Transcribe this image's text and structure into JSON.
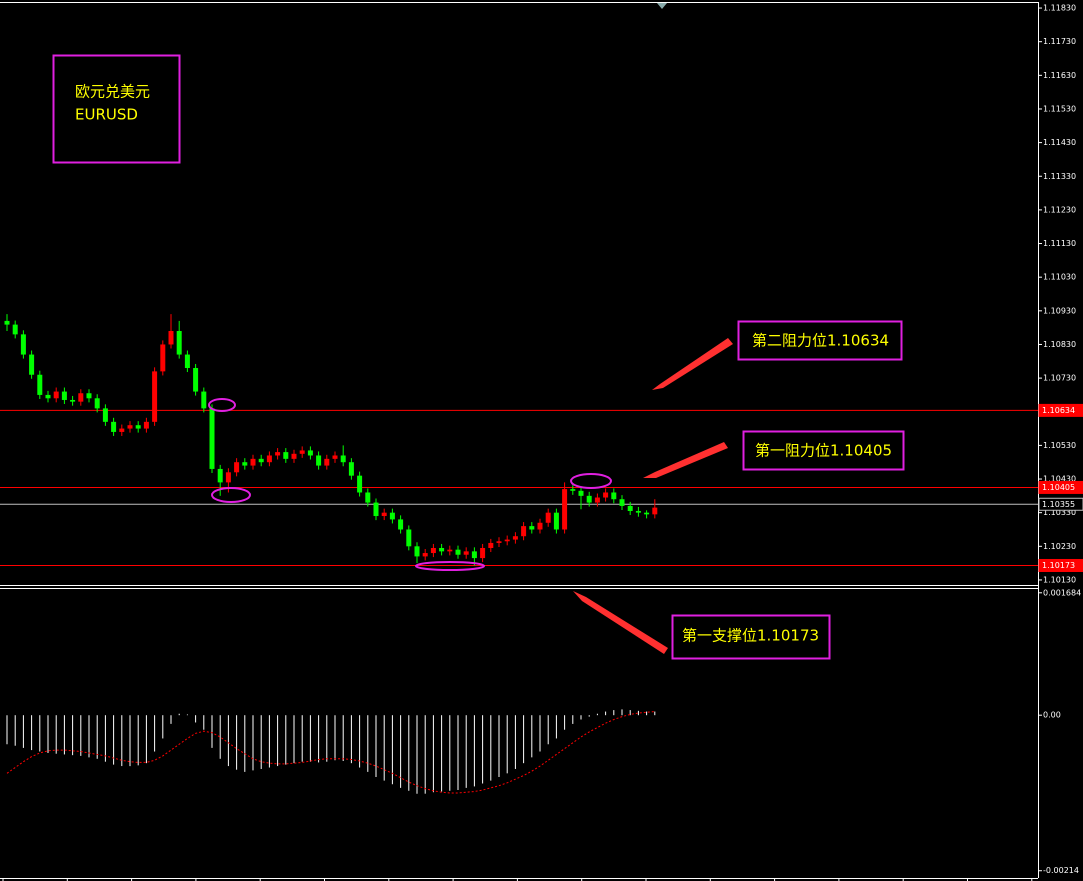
{
  "chart_data": [
    {
      "type": "candlestick",
      "annotations": [
        "欧元兑美元",
        "EURUSD",
        "第二阻力位1.10634",
        "第一阻力位1.10405",
        "第一支撑位1.10173"
      ],
      "up_color": "#ff0000",
      "down_color": "#00ff00",
      "ylim": [
        1.10115,
        1.11845
      ],
      "yticks": [
        {
          "value": 1.1183,
          "label": "1.11830"
        },
        {
          "value": 1.1173,
          "label": "1.11730"
        },
        {
          "value": 1.1163,
          "label": "1.11630"
        },
        {
          "value": 1.1153,
          "label": "1.11530"
        },
        {
          "value": 1.1143,
          "label": "1.11430"
        },
        {
          "value": 1.1133,
          "label": "1.11330"
        },
        {
          "value": 1.1123,
          "label": "1.11230"
        },
        {
          "value": 1.1113,
          "label": "1.11130"
        },
        {
          "value": 1.1103,
          "label": "1.11030"
        },
        {
          "value": 1.1093,
          "label": "1.10930"
        },
        {
          "value": 1.1083,
          "label": "1.10830"
        },
        {
          "value": 1.1073,
          "label": "1.10730"
        },
        {
          "value": 1.1053,
          "label": "1.10530"
        },
        {
          "value": 1.1043,
          "label": "1.10430"
        },
        {
          "value": 1.1033,
          "label": "1.10330"
        },
        {
          "value": 1.1023,
          "label": "1.10230"
        },
        {
          "value": 1.1013,
          "label": "1.10130"
        }
      ],
      "levels": [
        {
          "value": 1.10634,
          "color": "#ff0000"
        },
        {
          "value": 1.10405,
          "color": "#ff0000"
        },
        {
          "value": 1.10355,
          "color": "#c0c0c0"
        },
        {
          "value": 1.10173,
          "color": "#ff0000"
        }
      ],
      "open": [
        1.109,
        1.10889,
        1.1086,
        1.108,
        1.1074,
        1.1068,
        1.1067,
        1.1069,
        1.10665,
        1.1066,
        1.10685,
        1.1067,
        1.1064,
        1.106,
        1.1057,
        1.1058,
        1.1059,
        1.1058,
        1.106,
        1.1075,
        1.1083,
        1.1087,
        1.108,
        1.1076,
        1.1069,
        1.1064,
        1.1046,
        1.1042,
        1.1045,
        1.1048,
        1.1047,
        1.1049,
        1.1048,
        1.105,
        1.1051,
        1.1049,
        1.10505,
        1.10515,
        1.105,
        1.1047,
        1.1049,
        1.105,
        1.1048,
        1.1044,
        1.1039,
        1.1036,
        1.1032,
        1.1033,
        1.1031,
        1.1028,
        1.1023,
        1.102,
        1.1021,
        1.10225,
        1.10215,
        1.1022,
        1.10205,
        1.10215,
        1.10195,
        1.10225,
        1.1024,
        1.10245,
        1.1025,
        1.1026,
        1.1029,
        1.1028,
        1.103,
        1.1033,
        1.1028,
        1.104,
        1.10395,
        1.1038,
        1.1036,
        1.10375,
        1.1039,
        1.1037,
        1.1035,
        1.10335,
        1.1033,
        1.10325
      ],
      "high": [
        1.1092,
        1.10901,
        1.10872,
        1.10812,
        1.10752,
        1.10692,
        1.10702,
        1.10702,
        1.10677,
        1.10697,
        1.10697,
        1.10682,
        1.10652,
        1.10612,
        1.10592,
        1.10602,
        1.10602,
        1.10612,
        1.10762,
        1.10842,
        1.1092,
        1.109,
        1.10812,
        1.10772,
        1.10702,
        1.10652,
        1.10472,
        1.10462,
        1.10492,
        1.10492,
        1.10502,
        1.10502,
        1.10512,
        1.10522,
        1.10522,
        1.10517,
        1.10527,
        1.10527,
        1.10512,
        1.10502,
        1.10512,
        1.1053,
        1.10492,
        1.10452,
        1.10402,
        1.10372,
        1.10342,
        1.10342,
        1.10322,
        1.10292,
        1.10242,
        1.10222,
        1.10237,
        1.10237,
        1.10232,
        1.10232,
        1.10227,
        1.10227,
        1.10237,
        1.10252,
        1.10257,
        1.10262,
        1.10272,
        1.10302,
        1.10302,
        1.10312,
        1.10342,
        1.10342,
        1.1042,
        1.10412,
        1.10407,
        1.10392,
        1.10387,
        1.10402,
        1.10402,
        1.10382,
        1.10362,
        1.10347,
        1.10337,
        1.1037
      ],
      "low": [
        1.1087,
        1.10848,
        1.10788,
        1.10728,
        1.10668,
        1.10658,
        1.10658,
        1.10653,
        1.10648,
        1.10648,
        1.10658,
        1.10628,
        1.10588,
        1.10558,
        1.10558,
        1.10568,
        1.10568,
        1.10568,
        1.10588,
        1.10738,
        1.10818,
        1.10788,
        1.10748,
        1.10678,
        1.10628,
        1.10448,
        1.1038,
        1.1039,
        1.10438,
        1.10458,
        1.10458,
        1.10468,
        1.10468,
        1.10488,
        1.10478,
        1.10478,
        1.10493,
        1.10488,
        1.10458,
        1.10458,
        1.10478,
        1.10468,
        1.10428,
        1.10378,
        1.10348,
        1.10308,
        1.10308,
        1.10298,
        1.10268,
        1.10218,
        1.1018,
        1.10188,
        1.10198,
        1.10203,
        1.10203,
        1.10193,
        1.10193,
        1.10173,
        1.10183,
        1.10213,
        1.10228,
        1.10233,
        1.10238,
        1.10248,
        1.10268,
        1.10268,
        1.10288,
        1.10268,
        1.10268,
        1.10383,
        1.1034,
        1.10348,
        1.10348,
        1.10363,
        1.10358,
        1.10338,
        1.10323,
        1.10318,
        1.10313,
        1.10313
      ],
      "close": [
        1.10889,
        1.1086,
        1.108,
        1.1074,
        1.1068,
        1.1067,
        1.1069,
        1.10665,
        1.1066,
        1.10685,
        1.1067,
        1.1064,
        1.106,
        1.1057,
        1.1058,
        1.1059,
        1.1058,
        1.106,
        1.1075,
        1.1083,
        1.1087,
        1.108,
        1.1076,
        1.1069,
        1.1064,
        1.1046,
        1.1042,
        1.1045,
        1.1048,
        1.1047,
        1.1049,
        1.1048,
        1.105,
        1.1051,
        1.1049,
        1.10505,
        1.10515,
        1.105,
        1.1047,
        1.1049,
        1.105,
        1.1048,
        1.1044,
        1.1039,
        1.1036,
        1.1032,
        1.1033,
        1.1031,
        1.1028,
        1.1023,
        1.102,
        1.1021,
        1.10225,
        1.10215,
        1.1022,
        1.10205,
        1.10215,
        1.10195,
        1.10225,
        1.1024,
        1.10245,
        1.1025,
        1.1026,
        1.1029,
        1.1028,
        1.103,
        1.1033,
        1.1028,
        1.104,
        1.10395,
        1.1038,
        1.1036,
        1.10375,
        1.1039,
        1.1037,
        1.1035,
        1.10335,
        1.1033,
        1.10325,
        1.10345
      ]
    },
    {
      "type": "macd",
      "ylim": [
        -0.00224,
        0.00175
      ],
      "yticks": [
        0.001684,
        {
          "value": 0,
          "label": "0.00"
        },
        -0.00214
      ],
      "series": [
        {
          "color": "#ffffff",
          "values": [
            -0.0004,
            -0.00042,
            -0.00045,
            -0.00048,
            -0.0005,
            -0.00052,
            -0.00053,
            -0.00054,
            -0.00055,
            -0.00056,
            -0.00058,
            -0.0006,
            -0.00064,
            -0.00068,
            -0.0007,
            -0.0007,
            -0.00069,
            -0.00066,
            -0.0005,
            -0.00032,
            -0.00012,
            2e-05,
            1e-05,
            -0.0001,
            -0.0002,
            -0.00045,
            -0.0006,
            -0.0007,
            -0.00075,
            -0.00078,
            -0.00076,
            -0.00074,
            -0.00072,
            -0.0007,
            -0.00068,
            -0.00066,
            -0.00064,
            -0.00064,
            -0.00065,
            -0.00064,
            -0.00062,
            -0.00063,
            -0.00066,
            -0.00072,
            -0.00078,
            -0.00085,
            -0.0009,
            -0.00095,
            -0.001,
            -0.00104,
            -0.00108,
            -0.00108,
            -0.00106,
            -0.00105,
            -0.00104,
            -0.00103,
            -0.001,
            -0.00098,
            -0.00094,
            -0.0009,
            -0.00085,
            -0.0008,
            -0.00074,
            -0.00066,
            -0.00058,
            -0.0005,
            -0.0004,
            -0.00032,
            -0.0002,
            -0.00012,
            -6e-05,
            -2e-05,
            2e-05,
            5e-05,
            7e-05,
            8e-05,
            7e-05,
            6e-05,
            5e-05,
            5e-05
          ]
        },
        {
          "color": "#ff0000",
          "values": [
            -0.0008,
            -0.00072,
            -0.00064,
            -0.00057,
            -0.00052,
            -0.00049,
            -0.00048,
            -0.00048,
            -0.00049,
            -0.0005,
            -0.00052,
            -0.00054,
            -0.00056,
            -0.00059,
            -0.00062,
            -0.00064,
            -0.00065,
            -0.00065,
            -0.00062,
            -0.00056,
            -0.00048,
            -0.0004,
            -0.00032,
            -0.00025,
            -0.00022,
            -0.00024,
            -0.0003,
            -0.00038,
            -0.00046,
            -0.00053,
            -0.0006,
            -0.00064,
            -0.00066,
            -0.00067,
            -0.00067,
            -0.00066,
            -0.00065,
            -0.00063,
            -0.00061,
            -0.0006,
            -0.0006,
            -0.0006,
            -0.00061,
            -0.00063,
            -0.00066,
            -0.0007,
            -0.00075,
            -0.0008,
            -0.00086,
            -0.00092,
            -0.00097,
            -0.00101,
            -0.00104,
            -0.00106,
            -0.00107,
            -0.00107,
            -0.00106,
            -0.00105,
            -0.00103,
            -0.001,
            -0.00097,
            -0.00093,
            -0.00088,
            -0.00083,
            -0.00077,
            -0.0007,
            -0.00062,
            -0.00054,
            -0.00046,
            -0.00038,
            -0.0003,
            -0.00023,
            -0.00017,
            -0.00011,
            -6e-05,
            -2e-05,
            1e-05,
            3e-05,
            4e-05,
            5e-05
          ]
        }
      ]
    }
  ]
}
